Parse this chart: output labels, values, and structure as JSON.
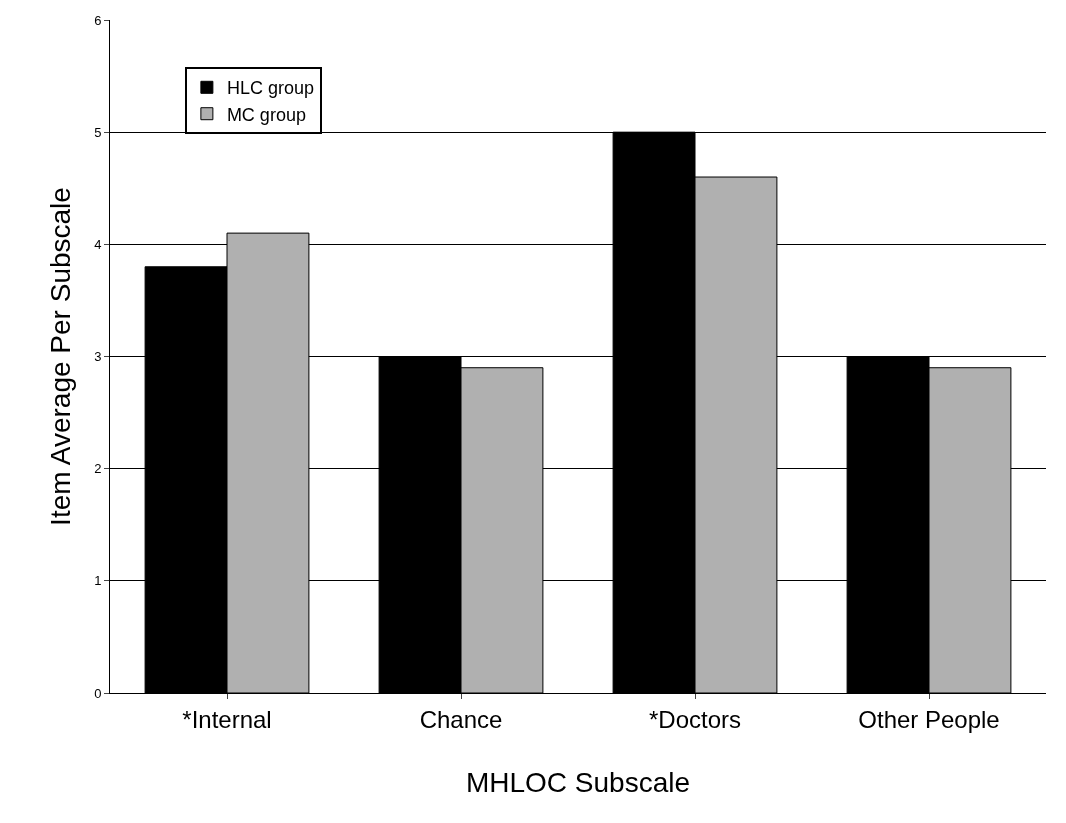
{
  "chart_data": {
    "type": "bar",
    "xlabel": "MHLOC Subscale",
    "ylabel": "Item Average Per Subscale",
    "categories": [
      "*Internal",
      "Chance",
      "*Doctors",
      "Other People"
    ],
    "series": [
      {
        "name": "HLC group",
        "color": "#000000",
        "values": [
          3.8,
          3.0,
          5.0,
          3.0
        ]
      },
      {
        "name": "MC group",
        "color": "#b0b0b0",
        "values": [
          4.1,
          2.9,
          4.6,
          2.9
        ]
      }
    ],
    "ylim": [
      0,
      6
    ],
    "yticks": [
      0,
      1,
      2,
      3,
      4,
      5,
      6
    ],
    "grid": "y",
    "legend": "top left"
  }
}
